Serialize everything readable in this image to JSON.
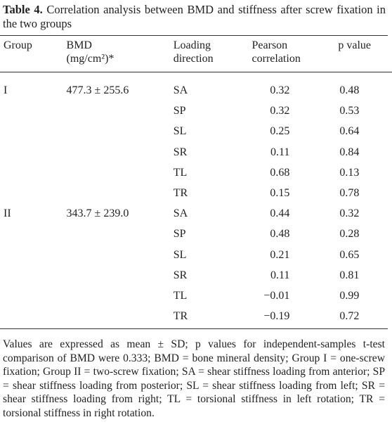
{
  "title": {
    "label": "Table 4.",
    "text": "Correlation analysis between BMD and stiffness after screw fixation in the two groups"
  },
  "table": {
    "header": [
      "Group",
      {
        "label": "BMD",
        "unit": "(mg/cm²)*"
      },
      "Loading direction",
      "Pearson correlation",
      "p value"
    ],
    "groups": [
      {
        "group": "I",
        "bmd": "477.3 ± 255.6",
        "rows": [
          [
            "SA",
            "0.32",
            "0.48"
          ],
          [
            "SP",
            "0.32",
            "0.53"
          ],
          [
            "SL",
            "0.25",
            "0.64"
          ],
          [
            "SR",
            "0.11",
            "0.84"
          ],
          [
            "TL",
            "0.68",
            "0.13"
          ],
          [
            "TR",
            "0.15",
            "0.78"
          ]
        ]
      },
      {
        "group": "II",
        "bmd": "343.7 ± 239.0",
        "rows": [
          [
            "SA",
            "0.44",
            "0.32"
          ],
          [
            "SP",
            "0.48",
            "0.28"
          ],
          [
            "SL",
            "0.21",
            "0.65"
          ],
          [
            "SR",
            "0.11",
            "0.81"
          ],
          [
            "TL",
            "−0.01",
            "0.99"
          ],
          [
            "TR",
            "−0.19",
            "0.72"
          ]
        ]
      }
    ]
  },
  "footnote": "Values are expressed as mean ± SD; p values for independent-samples t-test comparison of BMD were 0.333; BMD = bone mineral density; Group I = one-screw fixation; Group II = two-screw fixation; SA = shear stiffness loading from anterior; SP = shear stiffness loading from posterior; SL = shear stiffness loading from left; SR = shear stiffness loading from right; TL = torsional stiffness in left rotation; TR = torsional stiffness in right rotation."
}
